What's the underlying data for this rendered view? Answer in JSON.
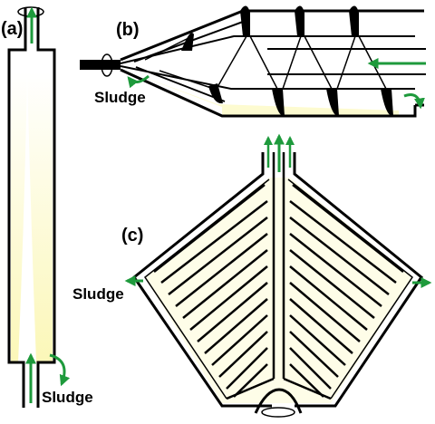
{
  "panels": {
    "a": {
      "label": "(a)",
      "sludge_label": "Sludge"
    },
    "b": {
      "label": "(b)",
      "sludge_label": "Sludge"
    },
    "c": {
      "label": "(c)",
      "sludge_label": "Sludge"
    }
  },
  "colors": {
    "outline": "#000000",
    "flow_arrow": "#1e9a3c",
    "sludge_fill": "#fdfbd0",
    "rotation": "#000000"
  }
}
